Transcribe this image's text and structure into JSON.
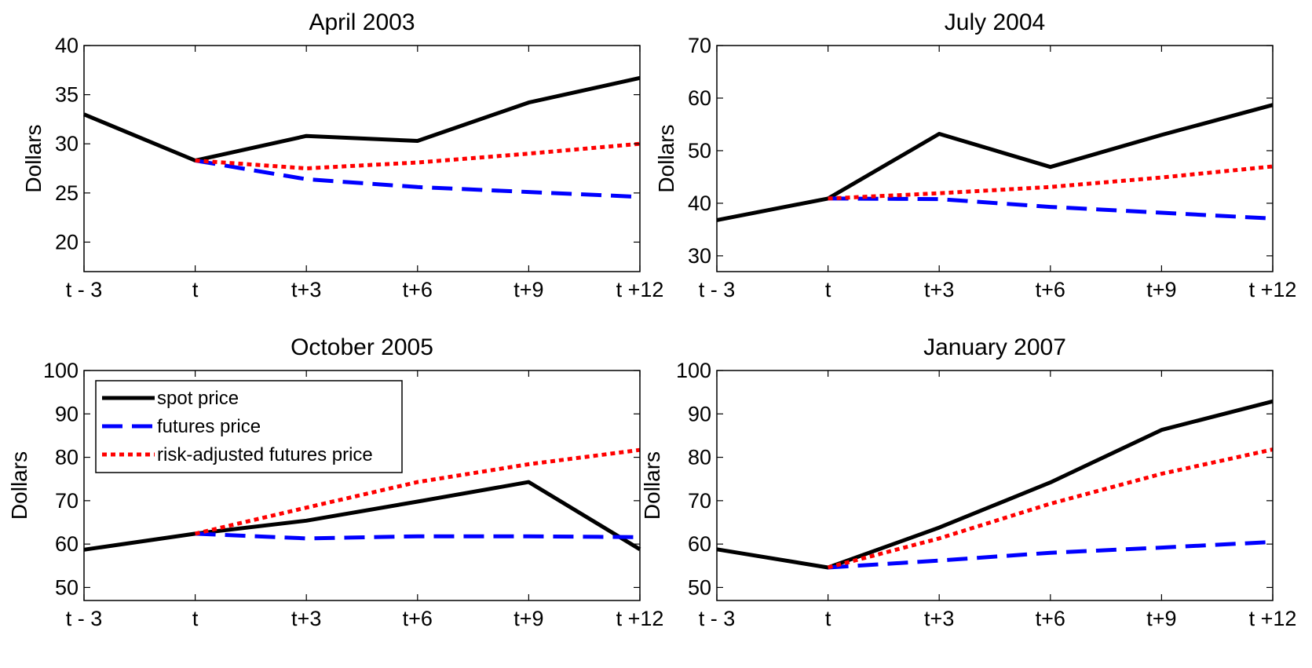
{
  "chart_data": [
    {
      "type": "line",
      "title": "April 2003",
      "ylabel": "Dollars",
      "categories": [
        "t - 3",
        "t",
        "t+3",
        "t+6",
        "t+9",
        "t +12"
      ],
      "ylim": [
        17,
        40
      ],
      "yticks": [
        20,
        25,
        30,
        35,
        40
      ],
      "series": [
        {
          "name": "spot price",
          "color": "#000000",
          "style": "solid",
          "values": [
            33.0,
            28.3,
            30.8,
            30.3,
            34.2,
            36.7
          ]
        },
        {
          "name": "futures price",
          "color": "#0000ff",
          "style": "dashed",
          "values": [
            null,
            28.3,
            26.4,
            25.6,
            25.1,
            24.6
          ]
        },
        {
          "name": "risk-adjusted futures price",
          "color": "#ff0000",
          "style": "dotted",
          "values": [
            null,
            28.3,
            27.5,
            28.1,
            29.0,
            30.0
          ]
        }
      ]
    },
    {
      "type": "line",
      "title": "July 2004",
      "ylabel": "Dollars",
      "categories": [
        "t - 3",
        "t",
        "t+3",
        "t+6",
        "t+9",
        "t +12"
      ],
      "ylim": [
        27,
        70
      ],
      "yticks": [
        30,
        40,
        50,
        60,
        70
      ],
      "series": [
        {
          "name": "spot price",
          "color": "#000000",
          "style": "solid",
          "values": [
            36.8,
            40.9,
            53.2,
            46.9,
            53.0,
            58.7
          ]
        },
        {
          "name": "futures price",
          "color": "#0000ff",
          "style": "dashed",
          "values": [
            null,
            40.9,
            40.8,
            39.3,
            38.2,
            37.1
          ]
        },
        {
          "name": "risk-adjusted futures price",
          "color": "#ff0000",
          "style": "dotted",
          "values": [
            null,
            40.9,
            41.9,
            43.1,
            44.9,
            47.0
          ]
        }
      ]
    },
    {
      "type": "line",
      "title": "October 2005",
      "ylabel": "Dollars",
      "categories": [
        "t - 3",
        "t",
        "t+3",
        "t+6",
        "t+9",
        "t +12"
      ],
      "ylim": [
        47,
        100
      ],
      "yticks": [
        50,
        60,
        70,
        80,
        90,
        100
      ],
      "legend": {
        "position": "top-left",
        "entries": [
          "spot price",
          "futures price",
          "risk-adjusted futures price"
        ]
      },
      "series": [
        {
          "name": "spot price",
          "color": "#000000",
          "style": "solid",
          "values": [
            58.7,
            62.4,
            65.4,
            69.8,
            74.3,
            58.8
          ]
        },
        {
          "name": "futures price",
          "color": "#0000ff",
          "style": "dashed",
          "values": [
            null,
            62.4,
            61.3,
            61.8,
            61.8,
            61.6
          ]
        },
        {
          "name": "risk-adjusted futures price",
          "color": "#ff0000",
          "style": "dotted",
          "values": [
            null,
            62.4,
            68.4,
            74.3,
            78.4,
            81.7
          ]
        }
      ]
    },
    {
      "type": "line",
      "title": "January 2007",
      "ylabel": "Dollars",
      "categories": [
        "t - 3",
        "t",
        "t+3",
        "t+6",
        "t+9",
        "t +12"
      ],
      "ylim": [
        47,
        100
      ],
      "yticks": [
        50,
        60,
        70,
        80,
        90,
        100
      ],
      "series": [
        {
          "name": "spot price",
          "color": "#000000",
          "style": "solid",
          "values": [
            58.8,
            54.6,
            63.8,
            74.2,
            86.3,
            92.9
          ]
        },
        {
          "name": "futures price",
          "color": "#0000ff",
          "style": "dashed",
          "values": [
            null,
            54.6,
            56.2,
            58.0,
            59.2,
            60.5
          ]
        },
        {
          "name": "risk-adjusted futures price",
          "color": "#ff0000",
          "style": "dotted",
          "values": [
            null,
            54.6,
            61.3,
            69.3,
            76.2,
            81.8
          ]
        }
      ]
    }
  ]
}
